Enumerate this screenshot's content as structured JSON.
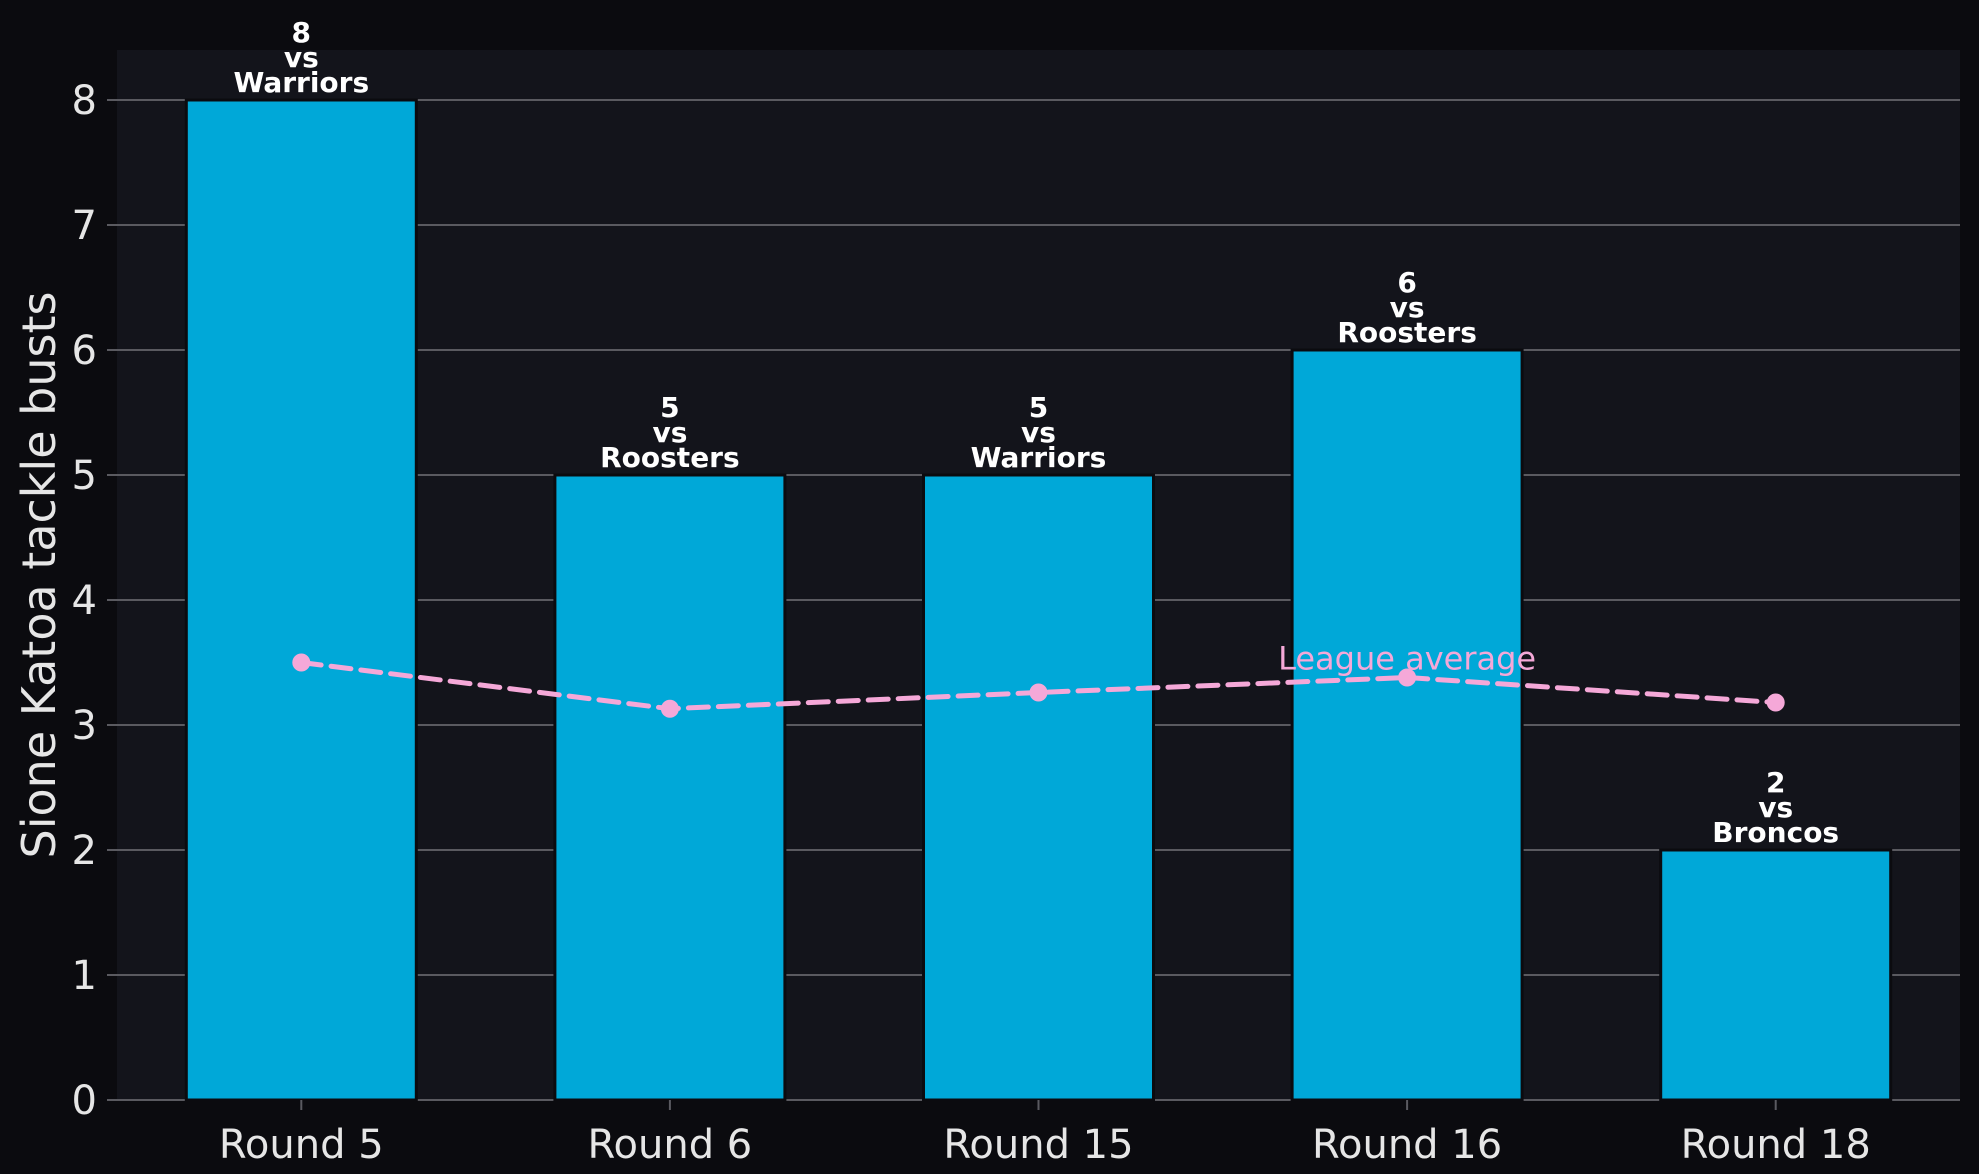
{
  "chart_data": {
    "type": "bar",
    "categories": [
      "Round 5",
      "Round 6",
      "Round 15",
      "Round 16",
      "Round 18"
    ],
    "series": [
      {
        "values": [
          8,
          5,
          5,
          6,
          2
        ],
        "opponents": [
          "Warriors",
          "Roosters",
          "Warriors",
          "Roosters",
          "Broncos"
        ],
        "color": "#00a8d8"
      },
      {
        "name": "League average",
        "type": "line",
        "style": "dashed",
        "values": [
          3.5,
          3.13,
          3.26,
          3.38,
          3.18
        ],
        "color": "#f5a8d8"
      }
    ],
    "bar_label_joiner": "vs",
    "title": "",
    "xlabel": "",
    "ylabel": "Sione Katoa tackle busts",
    "ylim": [
      0,
      8.4
    ],
    "yticks": [
      0,
      1,
      2,
      3,
      4,
      5,
      6,
      7,
      8
    ],
    "grid": "y",
    "legend": "none",
    "colors": {
      "figure_background": "#0b0b0f",
      "plot_background": "#13141b",
      "grid": "#5a5a60",
      "text": "#e6e6e6"
    }
  }
}
